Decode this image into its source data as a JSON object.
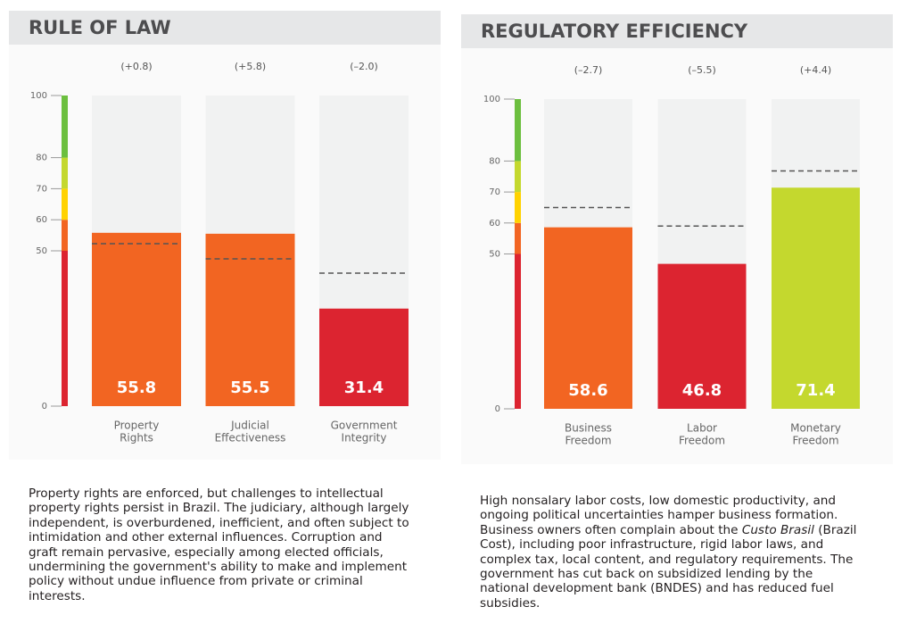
{
  "chart_data": [
    {
      "type": "bar",
      "title": "RULE OF LAW",
      "categories": [
        [
          "Property",
          "Rights"
        ],
        [
          "Judicial",
          "Effectiveness"
        ],
        [
          "Government",
          "Integrity"
        ]
      ],
      "values": [
        55.8,
        55.5,
        31.4
      ],
      "changes": [
        "(+0.8)",
        "(+5.8)",
        "(–2.0)"
      ],
      "reference_values": [
        52.3,
        47.4,
        42.8
      ],
      "colors": [
        "#f26522",
        "#f26522",
        "#dc2430"
      ],
      "ylim": [
        0,
        100
      ],
      "yticks": [
        0,
        50,
        60,
        70,
        80,
        100
      ],
      "scale_knots": [
        0,
        50,
        100
      ],
      "bands": [
        {
          "from": 0,
          "to": 50,
          "color": "#dc2430"
        },
        {
          "from": 50,
          "to": 60,
          "color": "#f26522"
        },
        {
          "from": 60,
          "to": 70,
          "color": "#ffd200"
        },
        {
          "from": 70,
          "to": 80,
          "color": "#c4d82e"
        },
        {
          "from": 80,
          "to": 100,
          "color": "#6cbf3f"
        }
      ],
      "description": [
        {
          "text": "Property rights are enforced, but challenges to intellectual property rights persist in Brazil. The judiciary, although largely independent, is overburdened, inefficient, and often subject to intimidation and other external influences. Corruption and graft remain pervasive, especially among elected officials, undermining the government's ability to make and implement policy without undue influence from private or criminal interests.",
          "italic": false
        }
      ]
    },
    {
      "type": "bar",
      "title": "REGULATORY EFFICIENCY",
      "categories": [
        [
          "Business",
          "Freedom"
        ],
        [
          "Labor",
          "Freedom"
        ],
        [
          "Monetary",
          "Freedom"
        ]
      ],
      "values": [
        58.6,
        46.8,
        71.4
      ],
      "changes": [
        "(–2.7)",
        "(–5.5)",
        "(+4.4)"
      ],
      "reference_values": [
        65,
        59,
        76.8
      ],
      "colors": [
        "#f26522",
        "#dc2430",
        "#c4d82e"
      ],
      "ylim": [
        0,
        100
      ],
      "yticks": [
        0,
        50,
        60,
        70,
        80,
        100
      ],
      "scale_knots": [
        0,
        50,
        100
      ],
      "bands": [
        {
          "from": 0,
          "to": 50,
          "color": "#dc2430"
        },
        {
          "from": 50,
          "to": 60,
          "color": "#f26522"
        },
        {
          "from": 60,
          "to": 70,
          "color": "#ffd200"
        },
        {
          "from": 70,
          "to": 80,
          "color": "#c4d82e"
        },
        {
          "from": 80,
          "to": 100,
          "color": "#6cbf3f"
        }
      ],
      "description": [
        {
          "text": "High nonsalary labor costs, low domestic productivity, and ongoing political uncertainties hamper business formation. Business owners often complain about the ",
          "italic": false
        },
        {
          "text": "Custo Brasil",
          "italic": true
        },
        {
          "text": " (Brazil Cost), including poor infrastructure, rigid labor laws, and complex tax, local content, and regulatory requirements. The government has cut back on subsidized lending by the national development bank (BNDES) and has reduced fuel subsidies.",
          "italic": false
        }
      ]
    }
  ]
}
